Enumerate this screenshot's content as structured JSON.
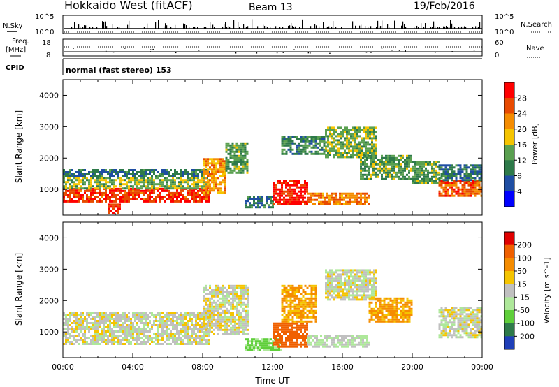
{
  "header": {
    "station": "Hokkaido West (fitACF)",
    "beam": "Beam 13",
    "date": "19/Feb/2016"
  },
  "noise_panel": {
    "left_label": "N.Sky",
    "right_label": "N.Search",
    "ticks_left": [
      "10^5",
      "10^0"
    ],
    "ticks_right": [
      "10^5",
      "10^0"
    ]
  },
  "freq_panel": {
    "left_label_line1": "Freq.",
    "left_label_line2": "[MHz]",
    "ticks_left": [
      "18",
      "8"
    ],
    "right_label": "Nave",
    "ticks_right": [
      "60",
      "0"
    ]
  },
  "cpid": {
    "label": "CPID",
    "mode": "normal (fast stereo) 153"
  },
  "colors": {
    "power_scale": [
      "#0000ff",
      "#1f4ea3",
      "#2e7a4a",
      "#5aa050",
      "#f5c400",
      "#f58c00",
      "#e84a00",
      "#ff0000"
    ],
    "velocity_scale": [
      "#1f3fb8",
      "#2e7a4a",
      "#5fcf3a",
      "#aee89a",
      "#c0c0c0",
      "#f5c400",
      "#f58c00",
      "#f06000",
      "#e00000"
    ]
  },
  "chart_data": [
    {
      "type": "heatmap",
      "name": "power",
      "xlabel": "",
      "ylabel": "Slant Range [km]",
      "xlim": [
        0,
        24
      ],
      "ylim": [
        180,
        4500
      ],
      "y_ticks": [
        "4000",
        "3000",
        "2000",
        "1000"
      ],
      "colorbar": {
        "label": "Power [dB]",
        "ticks": [
          "28",
          "24",
          "20",
          "16",
          "12",
          "8",
          "4"
        ],
        "range": [
          0,
          30
        ]
      },
      "regions": [
        {
          "t0": 0.0,
          "t1": 8.3,
          "r0": 600,
          "r1": 1050,
          "level": 26
        },
        {
          "t0": 0.0,
          "t1": 8.3,
          "r0": 1050,
          "r1": 1400,
          "level": 14
        },
        {
          "t0": 0.0,
          "t1": 8.3,
          "r0": 1400,
          "r1": 1650,
          "level": 8
        },
        {
          "t0": 2.6,
          "t1": 3.3,
          "r0": 250,
          "r1": 550,
          "level": 26
        },
        {
          "t0": 8.0,
          "t1": 9.3,
          "r0": 900,
          "r1": 2000,
          "level": 20
        },
        {
          "t0": 9.3,
          "t1": 10.6,
          "r0": 1500,
          "r1": 2500,
          "level": 12
        },
        {
          "t0": 10.4,
          "t1": 12.0,
          "r0": 400,
          "r1": 800,
          "level": 8
        },
        {
          "t0": 12.0,
          "t1": 14.0,
          "r0": 550,
          "r1": 1300,
          "level": 28
        },
        {
          "t0": 14.0,
          "t1": 17.5,
          "r0": 550,
          "r1": 900,
          "level": 22
        },
        {
          "t0": 12.5,
          "t1": 15.0,
          "r0": 2100,
          "r1": 2700,
          "level": 10
        },
        {
          "t0": 15.0,
          "t1": 18.0,
          "r0": 2000,
          "r1": 3000,
          "level": 14
        },
        {
          "t0": 17.0,
          "t1": 20.0,
          "r0": 1300,
          "r1": 2100,
          "level": 12
        },
        {
          "t0": 20.0,
          "t1": 21.5,
          "r0": 1200,
          "r1": 1900,
          "level": 12
        },
        {
          "t0": 21.5,
          "t1": 24.0,
          "r0": 800,
          "r1": 1300,
          "level": 24
        },
        {
          "t0": 21.5,
          "t1": 24.0,
          "r0": 1300,
          "r1": 1800,
          "level": 8
        }
      ]
    },
    {
      "type": "heatmap",
      "name": "velocity",
      "xlabel": "Time UT",
      "ylabel": "Slant Range [km]",
      "xlim": [
        0,
        24
      ],
      "ylim": [
        180,
        4500
      ],
      "x_ticks": [
        "00:00",
        "04:00",
        "08:00",
        "12:00",
        "16:00",
        "20:00",
        "00:00"
      ],
      "y_ticks": [
        "4000",
        "3000",
        "2000",
        "1000"
      ],
      "colorbar": {
        "label": "Velocity [m s^-1]",
        "ticks": [
          "200",
          "100",
          "50",
          "15",
          "-15",
          "-50",
          "-100",
          "-200"
        ],
        "range": [
          -250,
          250
        ]
      },
      "regions": [
        {
          "t0": 0.0,
          "t1": 8.3,
          "r0": 600,
          "r1": 1650,
          "level": 0
        },
        {
          "t0": 8.0,
          "t1": 10.6,
          "r0": 900,
          "r1": 2500,
          "level": 0
        },
        {
          "t0": 10.4,
          "t1": 12.5,
          "r0": 400,
          "r1": 800,
          "level": 60
        },
        {
          "t0": 12.0,
          "t1": 14.0,
          "r0": 550,
          "r1": 1300,
          "level": -130
        },
        {
          "t0": 12.5,
          "t1": 14.5,
          "r0": 1300,
          "r1": 2500,
          "level": -60
        },
        {
          "t0": 14.0,
          "t1": 17.5,
          "r0": 550,
          "r1": 900,
          "level": 20
        },
        {
          "t0": 15.0,
          "t1": 18.0,
          "r0": 2000,
          "r1": 3000,
          "level": 0
        },
        {
          "t0": 17.5,
          "t1": 20.0,
          "r0": 1300,
          "r1": 2100,
          "level": -60
        },
        {
          "t0": 21.5,
          "t1": 24.0,
          "r0": 800,
          "r1": 1800,
          "level": 0
        }
      ]
    }
  ]
}
